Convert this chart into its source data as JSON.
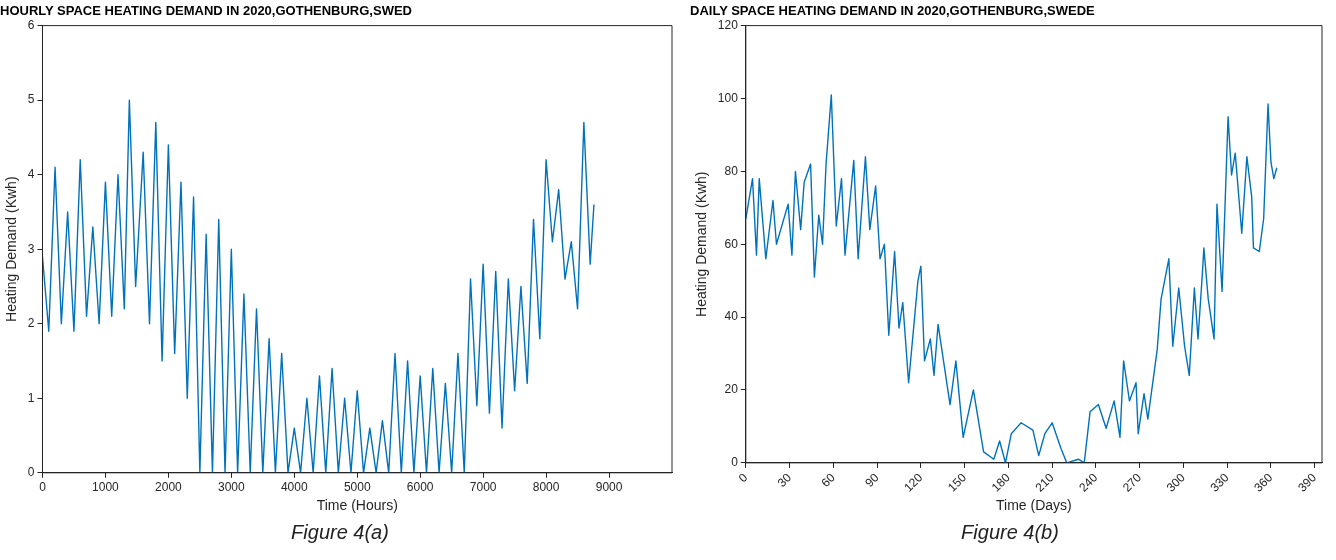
{
  "chart_data": [
    {
      "type": "line",
      "title": "HOURLY SPACE HEATING DEMAND IN 2020,GOTHENBURG,SWED",
      "xlabel": "Time (Hours)",
      "ylabel": "Heating Demand (Kwh)",
      "annotations": [
        "Figure 4(a)"
      ],
      "xlim": [
        0,
        10000
      ],
      "xticks": [
        0,
        1000,
        2000,
        3000,
        4000,
        5000,
        6000,
        7000,
        8000,
        9000
      ],
      "ylim": [
        0,
        6
      ],
      "yticks": [
        0,
        1,
        2,
        3,
        4,
        5,
        6
      ],
      "grid": false,
      "legend": false,
      "series": [
        {
          "color": "#0072bd",
          "x": [
            0,
            100,
            200,
            300,
            400,
            500,
            600,
            700,
            800,
            900,
            1000,
            1100,
            1200,
            1300,
            1380,
            1480,
            1600,
            1700,
            1800,
            1900,
            2000,
            2100,
            2200,
            2300,
            2400,
            2500,
            2600,
            2700,
            2800,
            2900,
            3000,
            3100,
            3200,
            3300,
            3400,
            3500,
            3600,
            3700,
            3800,
            3900,
            4000,
            4100,
            4200,
            4300,
            4400,
            4500,
            4600,
            4700,
            4800,
            4900,
            5000,
            5100,
            5200,
            5300,
            5400,
            5500,
            5600,
            5700,
            5800,
            5900,
            6000,
            6100,
            6200,
            6300,
            6400,
            6500,
            6600,
            6700,
            6800,
            6900,
            7000,
            7100,
            7200,
            7300,
            7400,
            7500,
            7600,
            7700,
            7800,
            7900,
            8000,
            8100,
            8200,
            8300,
            8400,
            8500,
            8600,
            8700,
            8760
          ],
          "values": [
            2.9,
            1.9,
            4.1,
            2.0,
            3.5,
            1.9,
            4.2,
            2.1,
            3.3,
            2.0,
            3.9,
            2.1,
            4.0,
            2.2,
            5.0,
            2.5,
            4.3,
            2.0,
            4.7,
            1.5,
            4.4,
            1.6,
            3.9,
            1.0,
            3.7,
            0,
            3.2,
            0,
            3.4,
            0,
            3.0,
            0,
            2.4,
            0,
            2.2,
            0,
            1.8,
            0,
            1.6,
            0,
            0.6,
            0,
            1.0,
            0,
            1.3,
            0,
            1.4,
            0,
            1.0,
            0,
            1.1,
            0,
            0.6,
            0,
            0.7,
            0,
            1.6,
            0,
            1.5,
            0,
            1.3,
            0,
            1.4,
            0,
            1.2,
            0,
            1.6,
            0,
            2.6,
            0.9,
            2.8,
            0.8,
            2.7,
            0.6,
            2.6,
            1.1,
            2.5,
            1.2,
            3.4,
            1.8,
            4.2,
            3.1,
            3.8,
            2.6,
            3.1,
            2.2,
            4.7,
            2.8,
            3.6
          ]
        }
      ]
    },
    {
      "type": "line",
      "title": "DAILY SPACE HEATING DEMAND IN 2020,GOTHENBURG,SWEDE",
      "xlabel": "Time (Days)",
      "ylabel": "Heating Demand (Kwh)",
      "annotations": [
        "Figure 4(b)"
      ],
      "xlim": [
        0,
        395
      ],
      "xticks": [
        0,
        30,
        60,
        90,
        120,
        150,
        180,
        210,
        240,
        270,
        300,
        330,
        360,
        390
      ],
      "ylim": [
        0,
        120
      ],
      "yticks": [
        0,
        20,
        40,
        60,
        80,
        100,
        120
      ],
      "grid": false,
      "legend": false,
      "series": [
        {
          "color": "#0072bd",
          "x": [
            0,
            4.6,
            7.3,
            9.2,
            13.7,
            18.6,
            21,
            29,
            31.6,
            34,
            37.6,
            40,
            44.4,
            47,
            50,
            52.6,
            55,
            58.6,
            62,
            65.6,
            68,
            74,
            77,
            82,
            85,
            89,
            92,
            95,
            98,
            102,
            105,
            107.6,
            111.6,
            118,
            120,
            122.5,
            126.5,
            129,
            131.8,
            140,
            144,
            149,
            156,
            163,
            170,
            174,
            178,
            182,
            188.7,
            196.8,
            200.8,
            205,
            210,
            216,
            220,
            228,
            232,
            236,
            241.7,
            247,
            252.5,
            256.5,
            259,
            263,
            267.5,
            269,
            273,
            275.6,
            282,
            284.7,
            290,
            292.7,
            296.8,
            300.8,
            304,
            307.5,
            310,
            313,
            314,
            317,
            321,
            323,
            326.5,
            330.6,
            333,
            335.5,
            340,
            343.5,
            346.8,
            348,
            352,
            355,
            358,
            360,
            362,
            364
          ],
          "values": [
            67,
            78,
            57,
            78,
            56,
            72,
            60,
            71,
            57,
            80,
            64,
            77,
            82,
            51,
            68,
            60,
            82,
            101,
            65,
            78,
            57,
            83,
            56,
            84,
            64,
            76,
            56,
            60,
            35,
            58,
            37,
            44,
            22,
            50,
            54,
            28,
            34,
            24,
            38,
            16,
            28,
            7,
            20,
            3,
            1,
            6,
            0,
            8,
            11,
            9,
            2,
            8,
            11,
            4,
            0,
            1,
            0,
            14,
            16,
            9.5,
            17,
            7,
            28,
            17,
            22,
            8,
            19,
            12,
            31,
            45,
            56,
            32,
            48,
            32,
            24,
            48,
            34,
            52,
            59,
            45,
            34,
            71,
            47,
            95,
            79,
            85,
            63,
            84,
            73,
            59,
            58,
            67,
            98.5,
            82.5,
            78,
            81
          ]
        }
      ]
    }
  ]
}
